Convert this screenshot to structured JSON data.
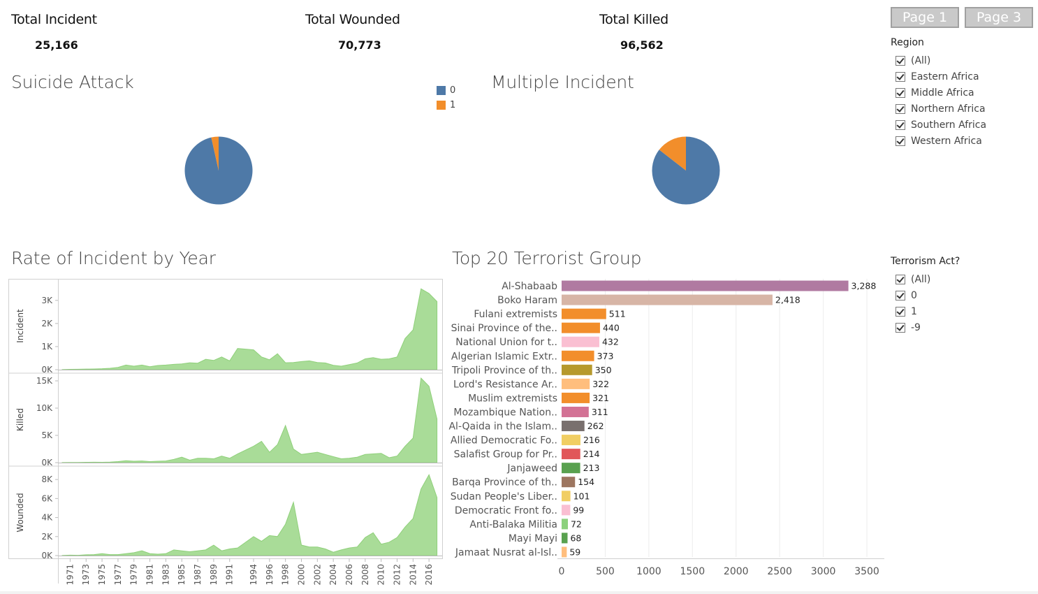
{
  "kpis": {
    "incident": {
      "label": "Total Incident",
      "value": "25,166"
    },
    "wounded": {
      "label": "Total Wounded",
      "value": "70,773"
    },
    "killed": {
      "label": "Total Killed",
      "value": "96,562"
    }
  },
  "nav": {
    "page1": "Page 1",
    "page3": "Page 3"
  },
  "filters": {
    "region": {
      "title": "Region",
      "items": [
        "(All)",
        "Eastern Africa",
        "Middle Africa",
        "Northern Africa",
        "Southern Africa",
        "Western Africa"
      ]
    },
    "terrorism": {
      "title": "Terrorism Act?",
      "items": [
        "(All)",
        "0",
        "1",
        "-9"
      ]
    }
  },
  "colors": {
    "blue": "#4e79a7",
    "orange": "#f28e2b",
    "area": "#a9dc98",
    "area_line": "#8fd07a"
  },
  "chart_data": [
    {
      "type": "pie",
      "title": "Suicide Attack",
      "legend": [
        "0",
        "1"
      ],
      "legend_position": "top-right",
      "slices": [
        {
          "label": "0",
          "value": 96.5,
          "color": "#4e79a7"
        },
        {
          "label": "1",
          "value": 3.5,
          "color": "#f28e2b"
        }
      ]
    },
    {
      "type": "pie",
      "title": "Multiple Incident",
      "slices": [
        {
          "label": "0",
          "value": 85.5,
          "color": "#4e79a7"
        },
        {
          "label": "1",
          "value": 14.5,
          "color": "#f28e2b"
        }
      ]
    },
    {
      "type": "area",
      "title": "Rate of Incident by Year",
      "x": [
        1970,
        1971,
        1972,
        1973,
        1974,
        1975,
        1976,
        1977,
        1978,
        1979,
        1980,
        1981,
        1982,
        1983,
        1984,
        1985,
        1986,
        1987,
        1988,
        1989,
        1990,
        1991,
        1992,
        1994,
        1995,
        1996,
        1997,
        1998,
        1999,
        2000,
        2001,
        2002,
        2003,
        2004,
        2005,
        2006,
        2007,
        2008,
        2009,
        2010,
        2011,
        2012,
        2013,
        2014,
        2015,
        2016,
        2017
      ],
      "x_tick_labels": [
        "1971",
        "1973",
        "1975",
        "1977",
        "1979",
        "1981",
        "1983",
        "1985",
        "1987",
        "1989",
        "1991",
        "1994",
        "1996",
        "1998",
        "2000",
        "2002",
        "2004",
        "2006",
        "2008",
        "2010",
        "2012",
        "2014",
        "2016"
      ],
      "series": [
        {
          "name": "Incident",
          "ylim": [
            0,
            3600
          ],
          "y_ticks": [
            "0K",
            "1K",
            "2K",
            "3K"
          ],
          "y_tick_values": [
            0,
            1000,
            2000,
            3000
          ],
          "values": [
            5,
            15,
            20,
            25,
            30,
            40,
            60,
            100,
            200,
            150,
            200,
            130,
            180,
            200,
            230,
            250,
            300,
            280,
            450,
            400,
            550,
            380,
            920,
            860,
            550,
            430,
            690,
            300,
            310,
            350,
            380,
            310,
            290,
            190,
            150,
            220,
            290,
            470,
            520,
            450,
            470,
            550,
            1350,
            1720,
            3500,
            3300,
            2950
          ]
        },
        {
          "name": "Killed",
          "ylim": [
            0,
            15000
          ],
          "y_ticks": [
            "0K",
            "5K",
            "10K",
            "15K"
          ],
          "y_tick_values": [
            0,
            5000,
            10000,
            15000
          ],
          "values": [
            10,
            30,
            40,
            60,
            80,
            60,
            100,
            200,
            350,
            250,
            300,
            200,
            250,
            300,
            600,
            1000,
            450,
            800,
            800,
            700,
            1200,
            800,
            1600,
            3000,
            3900,
            1900,
            3300,
            6800,
            2500,
            1500,
            1700,
            1900,
            1500,
            1100,
            700,
            800,
            1000,
            1500,
            1600,
            1700,
            900,
            1200,
            3000,
            4500,
            15500,
            14000,
            8000
          ]
        },
        {
          "name": "Wounded",
          "ylim": [
            0,
            8600
          ],
          "y_ticks": [
            "0K",
            "2K",
            "4K",
            "6K",
            "8K"
          ],
          "y_tick_values": [
            0,
            2000,
            4000,
            6000,
            8000
          ],
          "values": [
            10,
            50,
            30,
            80,
            100,
            200,
            100,
            100,
            200,
            300,
            500,
            200,
            150,
            200,
            600,
            500,
            400,
            500,
            600,
            1100,
            500,
            700,
            800,
            2000,
            1500,
            2100,
            2000,
            3300,
            5600,
            1100,
            900,
            900,
            700,
            350,
            600,
            800,
            900,
            1900,
            2400,
            1200,
            1400,
            1900,
            3000,
            3900,
            7000,
            8500,
            6100
          ]
        }
      ]
    },
    {
      "type": "bar",
      "title": "Top 20 Terrorist Group",
      "orientation": "horizontal",
      "xlim": [
        0,
        3700
      ],
      "x_ticks": [
        "0",
        "500",
        "1000",
        "1500",
        "2000",
        "2500",
        "3000",
        "3500"
      ],
      "x_tick_values": [
        0,
        500,
        1000,
        1500,
        2000,
        2500,
        3000,
        3500
      ],
      "categories": [
        "Al-Shabaab",
        "Boko Haram",
        "Fulani extremists",
        "Sinai Province of the..",
        "National Union for t..",
        "Algerian Islamic Extr..",
        "Tripoli Province of th..",
        "Lord's Resistance Ar..",
        "Muslim extremists",
        "Mozambique Nation..",
        "Al-Qaida in the Islam..",
        "Allied Democratic Fo..",
        "Salafist Group for Pr..",
        "Janjaweed",
        "Barqa Province of th..",
        "Sudan People's Liber..",
        "Democratic Front fo..",
        "Anti-Balaka Militia",
        "Mayi Mayi",
        "Jamaat Nusrat al-Isl.."
      ],
      "values": [
        3288,
        2418,
        511,
        440,
        432,
        373,
        350,
        322,
        321,
        311,
        262,
        216,
        214,
        213,
        154,
        101,
        99,
        72,
        68,
        59
      ],
      "value_labels": [
        "3,288",
        "2,418",
        "511",
        "440",
        "432",
        "373",
        "350",
        "322",
        "321",
        "311",
        "262",
        "216",
        "214",
        "213",
        "154",
        "101",
        "99",
        "72",
        "68",
        "59"
      ],
      "colors": [
        "#b07aa1",
        "#d7b5a6",
        "#f28e2b",
        "#f28e2b",
        "#fabfd2",
        "#f28e2b",
        "#b6992d",
        "#ffbe7d",
        "#f28e2b",
        "#d37295",
        "#79706e",
        "#f1ce63",
        "#e15759",
        "#59a14f",
        "#9d7660",
        "#f1ce63",
        "#fabfd2",
        "#8cd17d",
        "#59a14f",
        "#ffbe7d"
      ]
    }
  ]
}
